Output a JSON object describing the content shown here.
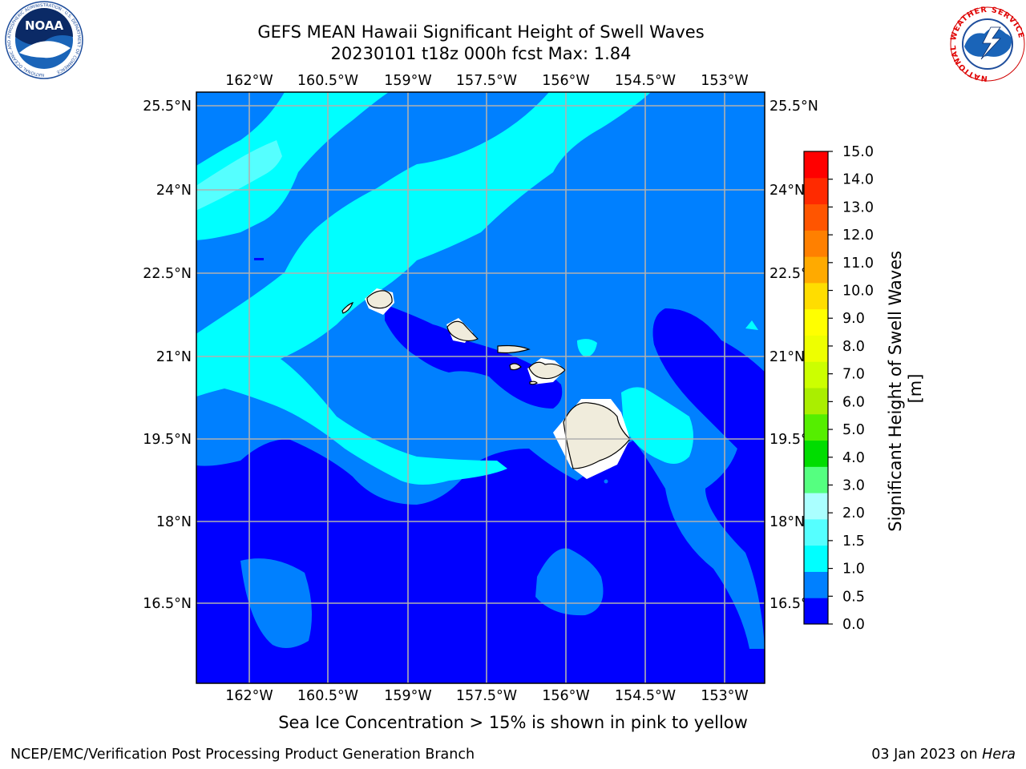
{
  "header": {
    "title_line1": "GEFS MEAN Hawaii Significant Height of Swell Waves",
    "title_line2": "20230101 t18z 000h fcst   Max: 1.84"
  },
  "logos": {
    "noaa_text": "NOAA",
    "nws_ring_text": "NATIONAL WEATHER SERVICE",
    "noaa_ring_text": "NATIONAL OCEANIC AND ATMOSPHERIC ADMINISTRATION · U.S. DEPARTMENT OF COMMERCE"
  },
  "map": {
    "lon_labels": [
      "162°W",
      "160.5°W",
      "159°W",
      "157.5°W",
      "156°W",
      "154.5°W",
      "153°W"
    ],
    "lat_labels": [
      "25.5°N",
      "24°N",
      "22.5°N",
      "21°N",
      "19.5°N",
      "18°N",
      "16.5°N"
    ],
    "colors": {
      "band_0_05": "#0000ff",
      "band_05_1": "#0080ff",
      "band_1_15": "#00ffff",
      "band_15_2": "#55ffff",
      "land": "#f0ecdc",
      "gridline": "#b0b0b0"
    }
  },
  "colorbar": {
    "title": "Significant Height of Swell Waves [m]",
    "ticks": [
      "0.0",
      "0.5",
      "1.0",
      "1.5",
      "2.0",
      "3.0",
      "4.0",
      "5.0",
      "6.0",
      "7.0",
      "8.0",
      "9.0",
      "10.0",
      "11.0",
      "12.0",
      "13.0",
      "14.0",
      "15.0"
    ],
    "colors": [
      "#0000ff",
      "#0080ff",
      "#00ffff",
      "#55ffff",
      "#aaffff",
      "#55ff80",
      "#00dd00",
      "#55ee00",
      "#aaee00",
      "#ccff00",
      "#eeff00",
      "#ffff00",
      "#ffdd00",
      "#ffaa00",
      "#ff8000",
      "#ff5500",
      "#ff2a00",
      "#ff0000"
    ]
  },
  "note": "Sea Ice Concentration > 15% is shown in pink to yellow",
  "footer": {
    "left": "NCEP/EMC/Verification Post Processing Product Generation Branch",
    "right_prefix": "03 Jan 2023 on",
    "right_host": "Hera"
  }
}
